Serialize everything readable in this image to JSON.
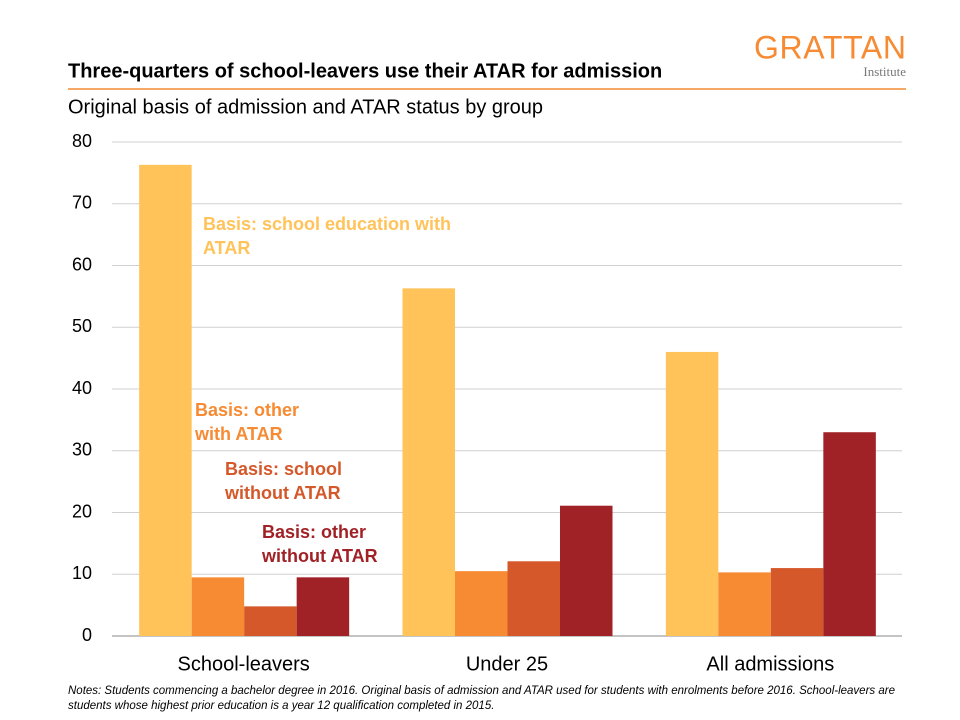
{
  "chart_data": {
    "type": "bar",
    "title": "Three-quarters of school-leavers use their ATAR for admission",
    "subtitle": "Original basis of admission and ATAR status by group",
    "logo": {
      "name": "GRATTAN",
      "sub": "Institute"
    },
    "categories": [
      "School-leavers",
      "Under 25",
      "All admissions"
    ],
    "series": [
      {
        "name": "Basis: school education with ATAR",
        "color": "#FFC35A",
        "values": [
          76.3,
          56.3,
          46
        ]
      },
      {
        "name": "Basis: other with ATAR",
        "color": "#F68B33",
        "values": [
          9.5,
          10.5,
          10.3
        ]
      },
      {
        "name": "Basis: school without ATAR",
        "color": "#D4582A",
        "values": [
          4.8,
          12.1,
          11
        ]
      },
      {
        "name": "Basis: other without ATAR",
        "color": "#A02226",
        "values": [
          9.5,
          21.1,
          33
        ]
      }
    ],
    "ylim": [
      0,
      80
    ],
    "yticks": [
      0,
      10,
      20,
      30,
      40,
      50,
      60,
      70,
      80
    ],
    "grid": true,
    "notes": "Notes: Students commencing a bachelor degree in 2016. Original basis of admission and ATAR used for students with enrolments before 2016. School-leavers are students whose highest prior education is a year 12 qualification completed in 2015."
  }
}
